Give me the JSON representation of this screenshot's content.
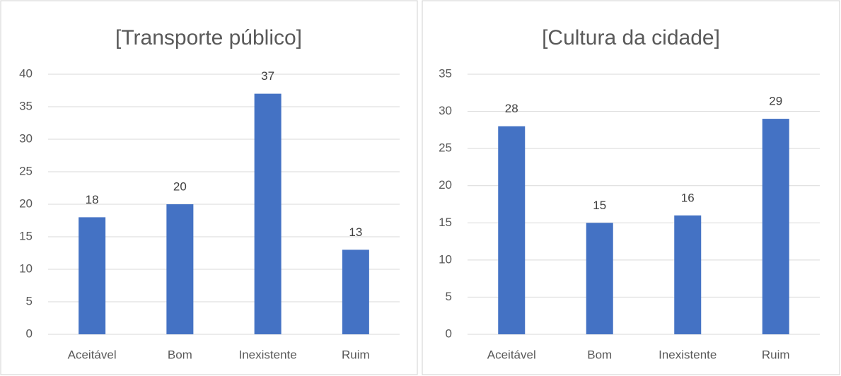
{
  "chart_data": [
    {
      "type": "bar",
      "title": "[Transporte público]",
      "categories": [
        "Aceitável",
        "Bom",
        "Inexistente",
        "Ruim"
      ],
      "values": [
        18,
        20,
        37,
        13
      ],
      "color": "#4472c4",
      "ylim": [
        0,
        40
      ],
      "yticks": [
        0,
        5,
        10,
        15,
        20,
        25,
        30,
        35,
        40
      ],
      "grid": true
    },
    {
      "type": "bar",
      "title": "[Cultura da cidade]",
      "categories": [
        "Aceitável",
        "Bom",
        "Inexistente",
        "Ruim"
      ],
      "values": [
        28,
        15,
        16,
        29
      ],
      "color": "#4472c4",
      "ylim": [
        0,
        35
      ],
      "yticks": [
        0,
        5,
        10,
        15,
        20,
        25,
        30,
        35
      ],
      "grid": true
    }
  ]
}
